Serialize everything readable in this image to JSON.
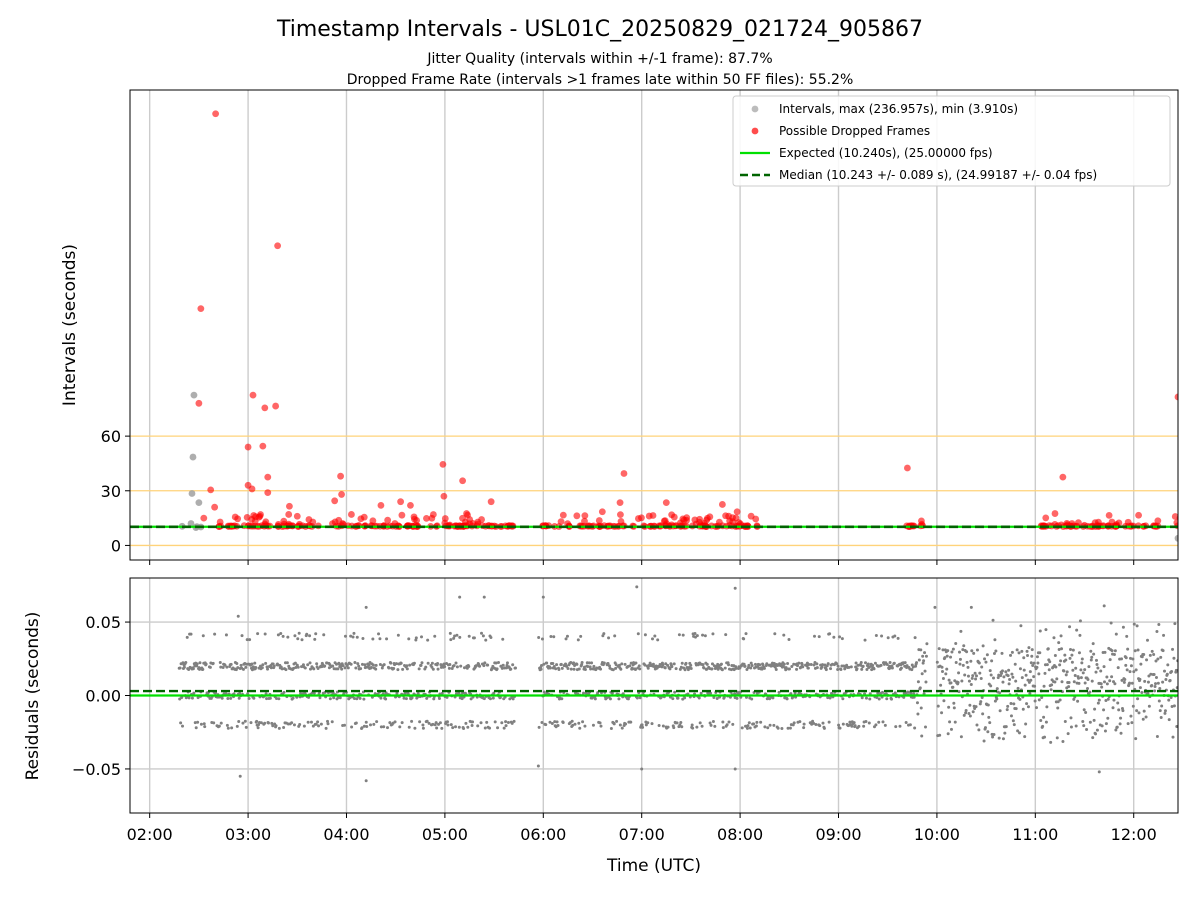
{
  "chart_data": [
    {
      "panel": "top",
      "type": "scatter",
      "title": "Timestamp Intervals - USL01C_20250829_021724_905867",
      "subtitle_lines": [
        "Jitter Quality (intervals within +/-1 frame): 87.7%",
        "Dropped Frame Rate (intervals >1 frames late within 50 FF files): 55.2%"
      ],
      "ylabel": "Intervals (seconds)",
      "xlim_hours": [
        1.8,
        12.45
      ],
      "ylim": [
        -8,
        250
      ],
      "yticks": [
        0,
        30,
        60
      ],
      "ytick_labels": [
        "0",
        "30",
        "60"
      ],
      "reference_lines_y": [
        0,
        30,
        60
      ],
      "grid": "vertical",
      "legend_position": "upper right",
      "legend": [
        {
          "label": "Intervals, max (236.957s), min (3.910s)",
          "marker": "circle",
          "color": "#a0a0a0"
        },
        {
          "label": "Possible Dropped Frames",
          "marker": "circle",
          "color": "#ff0000"
        },
        {
          "label": "Expected (10.240s), (25.00000 fps)",
          "marker": "line",
          "color": "#00e000"
        },
        {
          "label": "Median (10.243 +/- 0.089 s), (24.99187 +/- 0.04 fps)",
          "marker": "dashed",
          "color": "#006400"
        }
      ],
      "expected_interval": 10.24,
      "median_interval": 10.243,
      "max_interval": 236.957,
      "min_interval": 3.91,
      "series": [
        {
          "name": "Intervals",
          "color": "#a0a0a0",
          "points": [
            [
              2.33,
              10.5
            ],
            [
              2.42,
              12
            ],
            [
              2.43,
              28.5
            ],
            [
              2.44,
              48.5
            ],
            [
              2.45,
              82.5
            ],
            [
              2.48,
              10.3
            ],
            [
              2.5,
              23.5
            ],
            [
              2.47,
              9.8
            ],
            [
              2.52,
              10.1
            ],
            [
              12.45,
              3.91
            ]
          ]
        },
        {
          "name": "Possible Dropped Frames",
          "color": "#ff0000",
          "points": [
            [
              2.5,
              78
            ],
            [
              2.52,
              130
            ],
            [
              2.55,
              15
            ],
            [
              2.62,
              30.5
            ],
            [
              2.66,
              21
            ],
            [
              2.67,
              236.96
            ],
            [
              3.0,
              54
            ],
            [
              3.0,
              33
            ],
            [
              3.04,
              31
            ],
            [
              3.05,
              82.5
            ],
            [
              3.12,
              16
            ],
            [
              3.15,
              54.5
            ],
            [
              3.17,
              75.5
            ],
            [
              3.2,
              29
            ],
            [
              3.2,
              37.5
            ],
            [
              3.28,
              76.5
            ],
            [
              3.3,
              164.5
            ],
            [
              3.42,
              21.5
            ],
            [
              3.5,
              16
            ],
            [
              3.88,
              24.5
            ],
            [
              3.94,
              38
            ],
            [
              3.95,
              28
            ],
            [
              4.05,
              17
            ],
            [
              4.35,
              22
            ],
            [
              4.55,
              24
            ],
            [
              4.65,
              22
            ],
            [
              4.98,
              44.5
            ],
            [
              4.99,
              27
            ],
            [
              5.18,
              35.5
            ],
            [
              5.22,
              17.5
            ],
            [
              5.47,
              24
            ],
            [
              6.6,
              18.5
            ],
            [
              6.78,
              23.5
            ],
            [
              6.82,
              39.5
            ],
            [
              7.25,
              23.5
            ],
            [
              7.82,
              22.5
            ],
            [
              7.97,
              18.5
            ],
            [
              9.7,
              42.5
            ],
            [
              11.2,
              17.5
            ],
            [
              11.28,
              37.5
            ],
            [
              11.75,
              16.5
            ],
            [
              12.45,
              81.5
            ],
            [
              12.47,
              15
            ]
          ],
          "dense_clusters_hours": [
            [
              2.7,
              3.75
            ],
            [
              3.85,
              5.7
            ],
            [
              5.98,
              8.2
            ],
            [
              9.68,
              9.88
            ],
            [
              11.05,
              11.6
            ],
            [
              11.6,
              12.25
            ],
            [
              12.42,
              12.47
            ]
          ]
        }
      ]
    },
    {
      "panel": "bottom",
      "type": "scatter",
      "ylabel": "Residuals (seconds)",
      "xlabel": "Time (UTC)",
      "xlim_hours": [
        1.8,
        12.45
      ],
      "ylim": [
        -0.08,
        0.08
      ],
      "yticks": [
        0.05,
        0.0,
        -0.05
      ],
      "ytick_labels": [
        "0.05",
        "0.00",
        "−0.05"
      ],
      "xticks_hours": [
        2,
        3,
        4,
        5,
        6,
        7,
        8,
        9,
        10,
        11,
        12
      ],
      "xtick_labels": [
        "02:00",
        "03:00",
        "04:00",
        "05:00",
        "06:00",
        "07:00",
        "08:00",
        "09:00",
        "10:00",
        "11:00",
        "12:00"
      ],
      "grid": "both",
      "series": [
        {
          "name": "Residuals",
          "color": "#808080",
          "x_range_hours": [
            2.3,
            12.45
          ],
          "levels": [
            -0.02,
            0.0,
            0.02,
            0.04
          ]
        },
        {
          "name": "Expected",
          "color": "#00e000",
          "y": 0.0
        },
        {
          "name": "Median",
          "color": "#006400",
          "y": 0.003
        }
      ],
      "outliers": [
        [
          2.92,
          -0.055
        ],
        [
          2.9,
          0.054
        ],
        [
          4.2,
          -0.058
        ],
        [
          4.2,
          0.06
        ],
        [
          5.15,
          0.067
        ],
        [
          5.4,
          0.067
        ],
        [
          5.95,
          -0.048
        ],
        [
          6.0,
          0.067
        ],
        [
          6.95,
          0.074
        ],
        [
          7.0,
          -0.05
        ],
        [
          7.95,
          0.073
        ],
        [
          7.95,
          -0.05
        ],
        [
          9.98,
          0.06
        ],
        [
          10.35,
          0.06
        ],
        [
          11.65,
          -0.052
        ],
        [
          11.7,
          0.061
        ]
      ]
    }
  ]
}
